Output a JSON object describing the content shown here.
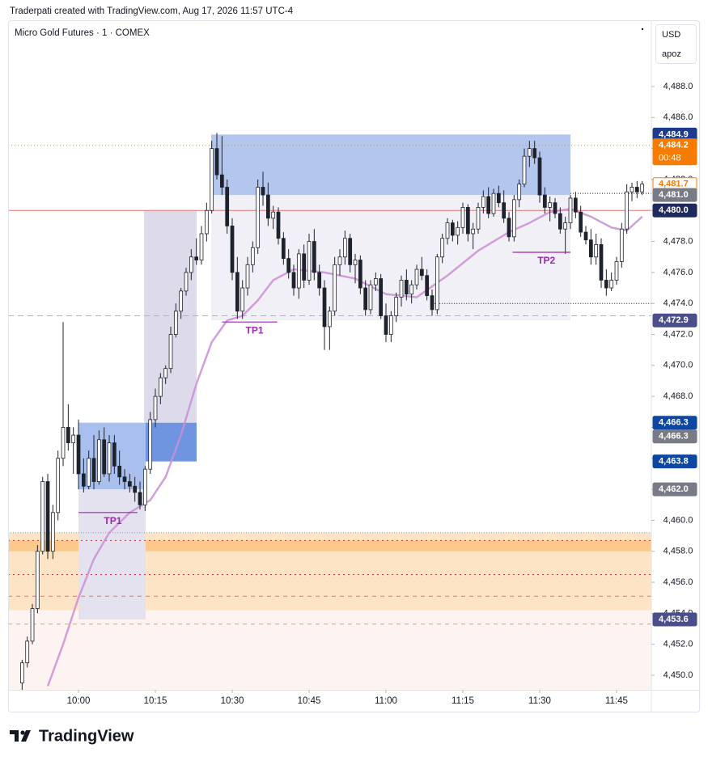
{
  "header": {
    "credit": "Traderpati created with TradingView.com, Aug 17, 2026 11:57 UTC-4",
    "symbol": "Micro Gold Futures · 1 · COMEX",
    "currency": "USD",
    "scale_mode": "apoz",
    "brand": "TradingView"
  },
  "chart_data": {
    "type": "candlestick",
    "xlim": [
      -13.74,
      111.79
    ],
    "ylim": [
      4449.06,
      4492.28
    ],
    "xticks": [
      {
        "value": 0,
        "label": "10:00"
      },
      {
        "value": 15,
        "label": "10:15"
      },
      {
        "value": 30,
        "label": "10:30"
      },
      {
        "value": 45,
        "label": "10:45"
      },
      {
        "value": 60,
        "label": "11:00"
      },
      {
        "value": 75,
        "label": "11:15"
      },
      {
        "value": 90,
        "label": "11:30"
      },
      {
        "value": 105,
        "label": "11:45"
      }
    ],
    "yticks": [
      {
        "value": 4450,
        "label": "4,450.0"
      },
      {
        "value": 4452,
        "label": "4,452.0"
      },
      {
        "value": 4454,
        "label": "4,454.0"
      },
      {
        "value": 4456,
        "label": "4,456.0"
      },
      {
        "value": 4458,
        "label": "4,458.0"
      },
      {
        "value": 4460,
        "label": "4,460.0"
      },
      {
        "value": 4462,
        "label": "4,462.0"
      },
      {
        "value": 4464,
        "label": "4,464.0"
      },
      {
        "value": 4466,
        "label": "4,466.0"
      },
      {
        "value": 4468,
        "label": "4,468.0"
      },
      {
        "value": 4470,
        "label": "4,470.0"
      },
      {
        "value": 4472,
        "label": "4,472.0"
      },
      {
        "value": 4474,
        "label": "4,474.0"
      },
      {
        "value": 4476,
        "label": "4,476.0"
      },
      {
        "value": 4478,
        "label": "4,478.0"
      },
      {
        "value": 4480,
        "label": "4,480.0"
      },
      {
        "value": 4482,
        "label": "4,482.0"
      },
      {
        "value": 4484,
        "label": "4,484.0"
      },
      {
        "value": 4486,
        "label": "4,486.0"
      },
      {
        "value": 4488,
        "label": "4,488.0"
      }
    ],
    "up_color": "#ffffff",
    "down_color": "#1e222d",
    "outline_color": "#1e222d",
    "x": [
      -11,
      -10,
      -9,
      -8,
      -7,
      -6,
      -5,
      -4,
      -3,
      -2,
      -1,
      0,
      1,
      2,
      3,
      4,
      5,
      6,
      7,
      8,
      9,
      10,
      11,
      12,
      13,
      14,
      15,
      16,
      17,
      18,
      19,
      20,
      21,
      22,
      23,
      24,
      25,
      26,
      27,
      28,
      29,
      30,
      31,
      32,
      33,
      34,
      35,
      36,
      37,
      38,
      39,
      40,
      41,
      42,
      43,
      44,
      45,
      46,
      47,
      48,
      49,
      50,
      51,
      52,
      53,
      54,
      55,
      56,
      57,
      58,
      59,
      60,
      61,
      62,
      63,
      64,
      65,
      66,
      67,
      68,
      69,
      70,
      71,
      72,
      73,
      74,
      75,
      76,
      77,
      78,
      79,
      80,
      81,
      82,
      83,
      84,
      85,
      86,
      87,
      88,
      89,
      90,
      91,
      92,
      93,
      94,
      95,
      96,
      97,
      98,
      99,
      100,
      101,
      102,
      103,
      104,
      105,
      106,
      107,
      108,
      109,
      110
    ],
    "candles": [
      [
        4449.5,
        4451,
        4449,
        4450.8
      ],
      [
        4450.8,
        4452.5,
        4450.5,
        4452.2
      ],
      [
        4452.2,
        4454.6,
        4452,
        4454.3
      ],
      [
        4454.3,
        4458.4,
        4454,
        4458
      ],
      [
        4458,
        4462.8,
        4457.8,
        4462.5
      ],
      [
        4462.5,
        4463,
        4457.5,
        4458
      ],
      [
        4458,
        4461,
        4457.5,
        4460.5
      ],
      [
        4460.5,
        4464.5,
        4460,
        4464
      ],
      [
        4464,
        4472.8,
        4463.5,
        4466
      ],
      [
        4466,
        4467.5,
        4464.5,
        4465
      ],
      [
        4465,
        4466,
        4463,
        4465.5
      ],
      [
        4465.5,
        4466.5,
        4462,
        4463
      ],
      [
        4463,
        4464,
        4461.8,
        4462.2
      ],
      [
        4462.2,
        4464.5,
        4462,
        4464
      ],
      [
        4464,
        4465.5,
        4462,
        4462.5
      ],
      [
        4462.5,
        4465.8,
        4462.3,
        4465.2
      ],
      [
        4465.2,
        4466,
        4462.8,
        4463
      ],
      [
        4463,
        4465.5,
        4462.5,
        4465
      ],
      [
        4465,
        4465.5,
        4463,
        4463.5
      ],
      [
        4463.5,
        4464.5,
        4462.3,
        4462.8
      ],
      [
        4462.8,
        4463.3,
        4462,
        4462.5
      ],
      [
        4462.5,
        4463,
        4461.8,
        4462.2
      ],
      [
        4462.2,
        4462.8,
        4461.2,
        4461.8
      ],
      [
        4461.8,
        4462.5,
        4460.7,
        4461
      ],
      [
        4461,
        4463.5,
        4460.6,
        4463.3
      ],
      [
        4463.3,
        4467,
        4463,
        4466.5
      ],
      [
        4466.5,
        4468.5,
        4466,
        4468
      ],
      [
        4468,
        4469.5,
        4467.5,
        4469.2
      ],
      [
        4469.2,
        4470,
        4468.8,
        4469.8
      ],
      [
        4469.8,
        4472.5,
        4469.5,
        4472
      ],
      [
        4472,
        4474,
        4471.8,
        4473.5
      ],
      [
        4473.5,
        4475,
        4473,
        4474.8
      ],
      [
        4474.8,
        4476.3,
        4474.5,
        4476
      ],
      [
        4476,
        4477.5,
        4475.5,
        4477
      ],
      [
        4477,
        4478.2,
        4476.5,
        4476.8
      ],
      [
        4476.8,
        4479,
        4476.5,
        4478.5
      ],
      [
        4478.5,
        4480.5,
        4478,
        4480
      ],
      [
        4480,
        4484.5,
        4479.8,
        4484
      ],
      [
        4484,
        4485,
        4482,
        4482.3
      ],
      [
        4482.3,
        4484.8,
        4481,
        4481.5
      ],
      [
        4481.5,
        4482,
        4478.5,
        4479
      ],
      [
        4479,
        4479.5,
        4475.5,
        4476
      ],
      [
        4476,
        4477,
        4473,
        4473.5
      ],
      [
        4473.5,
        4475.5,
        4473,
        4475
      ],
      [
        4475,
        4477,
        4474.5,
        4476.5
      ],
      [
        4476.5,
        4478,
        4476,
        4477.6
      ],
      [
        4477.6,
        4482,
        4477.2,
        4481.5
      ],
      [
        4481.5,
        4482.5,
        4480.3,
        4481
      ],
      [
        4481,
        4481.8,
        4479,
        4479.5
      ],
      [
        4479.5,
        4480.3,
        4478.8,
        4479.9
      ],
      [
        4479.9,
        4480.2,
        4477.8,
        4478.2
      ],
      [
        4478.2,
        4478.6,
        4476.5,
        4476.9
      ],
      [
        4476.9,
        4477.5,
        4475.6,
        4476
      ],
      [
        4476,
        4476.5,
        4474.5,
        4475
      ],
      [
        4475,
        4477.5,
        4474.3,
        4477.2
      ],
      [
        4477.2,
        4477.8,
        4475,
        4475.5
      ],
      [
        4475.5,
        4478.5,
        4475.2,
        4478
      ],
      [
        4478,
        4478.8,
        4475.5,
        4476
      ],
      [
        4476,
        4476.5,
        4474.5,
        4475
      ],
      [
        4475,
        4475.5,
        4471,
        4472.5
      ],
      [
        4472.5,
        4473.8,
        4471,
        4473.5
      ],
      [
        4473.5,
        4477,
        4473.2,
        4476.5
      ],
      [
        4476.5,
        4477.5,
        4475.8,
        4477
      ],
      [
        4477,
        4478.7,
        4476.5,
        4478.2
      ],
      [
        4478.2,
        4478.5,
        4476,
        4476.5
      ],
      [
        4476.5,
        4477.2,
        4475.3,
        4476.8
      ],
      [
        4476.8,
        4477.1,
        4474.6,
        4475
      ],
      [
        4475,
        4475.5,
        4473.2,
        4473.6
      ],
      [
        4473.6,
        4475.5,
        4473.3,
        4475.2
      ],
      [
        4475.2,
        4476,
        4474.8,
        4475.6
      ],
      [
        4475.6,
        4475.9,
        4473,
        4473.2
      ],
      [
        4473.2,
        4474,
        4471.5,
        4472
      ],
      [
        4472,
        4473.5,
        4471.5,
        4473.2
      ],
      [
        4473.2,
        4474.7,
        4472.8,
        4474.4
      ],
      [
        4474.4,
        4475.8,
        4473.8,
        4475.5
      ],
      [
        4475.5,
        4476.2,
        4474.2,
        4474.6
      ],
      [
        4474.6,
        4475.5,
        4474,
        4475.2
      ],
      [
        4475.2,
        4476.5,
        4474.9,
        4476.2
      ],
      [
        4476.2,
        4477,
        4475.5,
        4475.8
      ],
      [
        4475.8,
        4476.2,
        4474.2,
        4474.5
      ],
      [
        4474.5,
        4474.9,
        4473.2,
        4473.6
      ],
      [
        4473.6,
        4477.2,
        4473.3,
        4477
      ],
      [
        4477,
        4478.5,
        4476.6,
        4478.2
      ],
      [
        4478.2,
        4479.5,
        4477.8,
        4479.2
      ],
      [
        4479.2,
        4479.4,
        4478,
        4478.4
      ],
      [
        4478.4,
        4479.3,
        4477.8,
        4478.9
      ],
      [
        4478.9,
        4480.5,
        4478.5,
        4480.2
      ],
      [
        4480.2,
        4480.4,
        4478,
        4478.5
      ],
      [
        4478.5,
        4479.2,
        4477.5,
        4478.8
      ],
      [
        4478.8,
        4480.5,
        4478.5,
        4480.2
      ],
      [
        4480.2,
        4481.3,
        4479.8,
        4480.9
      ],
      [
        4480.9,
        4481.5,
        4479.5,
        4479.8
      ],
      [
        4479.8,
        4481.4,
        4479.6,
        4481.1
      ],
      [
        4481.1,
        4481.6,
        4480.2,
        4480.5
      ],
      [
        4480.5,
        4481.3,
        4479.2,
        4479.5
      ],
      [
        4479.5,
        4479.9,
        4478,
        4478.3
      ],
      [
        4478.3,
        4481,
        4478,
        4480.7
      ],
      [
        4480.7,
        4482,
        4480.2,
        4481.7
      ],
      [
        4481.7,
        4484,
        4481.5,
        4483.5
      ],
      [
        4483.5,
        4484.5,
        4482.8,
        4484
      ],
      [
        4484,
        4484.5,
        4483,
        4483.4
      ],
      [
        4483.4,
        4483.8,
        4480.5,
        4481
      ],
      [
        4481,
        4481.5,
        4479.8,
        4480.2
      ],
      [
        4480.2,
        4480.9,
        4479.3,
        4480.5
      ],
      [
        4480.5,
        4480.8,
        4479.5,
        4479.8
      ],
      [
        4479.8,
        4480.2,
        4478.5,
        4478.8
      ],
      [
        4478.8,
        4479.6,
        4477.2,
        4479.2
      ],
      [
        4479.2,
        4481,
        4478.8,
        4480.8
      ],
      [
        4480.8,
        4481.2,
        4479.5,
        4479.9
      ],
      [
        4479.9,
        4480.3,
        4478.3,
        4478.6
      ],
      [
        4478.6,
        4479,
        4477.8,
        4478.1
      ],
      [
        4478.1,
        4478.8,
        4476.5,
        4477
      ],
      [
        4477,
        4478.5,
        4476.5,
        4477.8
      ],
      [
        4477.8,
        4478.2,
        4475,
        4475.5
      ],
      [
        4475.5,
        4476.2,
        4474.5,
        4475
      ],
      [
        4475,
        4476,
        4474.8,
        4475.5
      ],
      [
        4475.5,
        4477,
        4475.2,
        4476.7
      ],
      [
        4476.7,
        4479.2,
        4476.3,
        4478.8
      ],
      [
        4478.8,
        4481.7,
        4478.5,
        4481.2
      ],
      [
        4481.2,
        4481.8,
        4480.6,
        4481.5
      ],
      [
        4481.5,
        4481.9,
        4480.8,
        4481.2
      ],
      [
        4481.2,
        4481.9,
        4481,
        4481.7
      ]
    ],
    "moving_average": {
      "color": "#c98fd6",
      "x": [
        -6,
        -3,
        0,
        3,
        6,
        10,
        14,
        17,
        20,
        23,
        26,
        29,
        32,
        35,
        38,
        42,
        48,
        54,
        60,
        66,
        72,
        78,
        84,
        88,
        92,
        96,
        100,
        104,
        107,
        110
      ],
      "values": [
        4449.3,
        4452,
        4455,
        4457.5,
        4459.2,
        4460.5,
        4461.3,
        4462.8,
        4465.5,
        4468.8,
        4471.5,
        4472.9,
        4473.2,
        4474.2,
        4475.5,
        4476.2,
        4476,
        4475.6,
        4474.6,
        4474.4,
        4475.8,
        4477.4,
        4478.6,
        4479.2,
        4479.9,
        4480.1,
        4479.6,
        4478.9,
        4478.7,
        4479.6
      ]
    },
    "zones": [
      {
        "full_width": true,
        "y": [
          4459.2,
          4454.2
        ],
        "color": "#fde4c4"
      },
      {
        "full_width": true,
        "y": [
          4454.2,
          4449.06
        ],
        "color": "#fdf3f0"
      },
      {
        "full_width": true,
        "y": [
          4458.7,
          4458.0
        ],
        "color": "#fcc98a"
      },
      {
        "x": [
          0,
          13.1
        ],
        "y": [
          4462.0,
          4453.6
        ],
        "color": "#e4e2ee"
      },
      {
        "x": [
          12.8,
          23.05
        ],
        "y": [
          4480.0,
          4466.3
        ],
        "color": "#dddbea"
      },
      {
        "x": [
          0,
          13.1
        ],
        "y": [
          4466.3,
          4462.0
        ],
        "color": "#a9c0ee"
      },
      {
        "x": [
          13.1,
          23.05
        ],
        "y": [
          4466.3,
          4463.8
        ],
        "color": "#6f95e0"
      },
      {
        "x": [
          25.9,
          96
        ],
        "y": [
          4481.0,
          4472.9
        ],
        "color": "#f1f0f7"
      },
      {
        "x": [
          25.9,
          96
        ],
        "y": [
          4484.9,
          4481.0
        ],
        "color": "#b3c6ee"
      }
    ],
    "levels": [
      {
        "value": 4484.2,
        "color": "#e08a3c",
        "dash": "1,3"
      },
      {
        "value": 4480.0,
        "color": "#e57373",
        "dash": "none"
      },
      {
        "value": 4473.2,
        "color": "#b0b3bd",
        "dash": "7,5"
      },
      {
        "value": 4474.0,
        "x": [
          69.5,
          111.79
        ],
        "color": "#131722",
        "dash": "1,2"
      },
      {
        "value": 4481.1,
        "x": [
          96,
          111.79
        ],
        "color": "#131722",
        "dash": "1,2"
      },
      {
        "value": 4459.2,
        "color": "#9598a1",
        "dash": "1,2"
      },
      {
        "value": 4458.7,
        "color": "#d32f2f",
        "dash": "2,4"
      },
      {
        "value": 4456.5,
        "color": "#d32f2f",
        "dash": "2,4"
      },
      {
        "value": 4455.1,
        "color": "#e57373",
        "dash": "5,5"
      },
      {
        "value": 4453.3,
        "color": "#f0a050",
        "dash": "5,5"
      }
    ],
    "targets": [
      {
        "label": "TP1",
        "value": 4460.5,
        "x": [
          0,
          11.5
        ],
        "color": "#9c27b0"
      },
      {
        "label": "TP1",
        "value": 4472.8,
        "x": [
          28,
          38.8
        ],
        "color": "#9c27b0"
      },
      {
        "label": "TP2",
        "value": 4477.3,
        "x": [
          84.7,
          96
        ],
        "color": "#9c27b0"
      }
    ],
    "price_labels": [
      {
        "value": 4484.9,
        "label": "4,484.9",
        "bg": "#1e3a8a",
        "fg": "#ffffff"
      },
      {
        "value": 4484.2,
        "label": "4,484.2",
        "timer": "00:48",
        "bg": "#f57c00",
        "fg": "#ffffff"
      },
      {
        "value": 4481.7,
        "label": "4,481.7",
        "bg": "#ffffff",
        "fg": "#f57c00"
      },
      {
        "value": 4481.0,
        "label": "4,481.0",
        "bg": "#787b86",
        "fg": "#ffffff"
      },
      {
        "value": 4480.0,
        "label": "4,480.0",
        "bg": "#1f2a5c",
        "fg": "#ffffff"
      },
      {
        "value": 4472.9,
        "label": "4,472.9",
        "bg": "#4a4f8c",
        "fg": "#ffffff"
      },
      {
        "value": 4466.3,
        "label": "4,466.3",
        "bg": "#0d47a1",
        "fg": "#ffffff"
      },
      {
        "value": 4466.3,
        "label": "4,466.3",
        "bg": "#787b86",
        "fg": "#ffffff",
        "offset": 1
      },
      {
        "value": 4463.8,
        "label": "4,463.8",
        "bg": "#0d47a1",
        "fg": "#ffffff"
      },
      {
        "value": 4462.0,
        "label": "4,462.0",
        "bg": "#787b86",
        "fg": "#ffffff"
      },
      {
        "value": 4453.6,
        "label": "4,453.6",
        "bg": "#4a4f8c",
        "fg": "#ffffff"
      }
    ]
  }
}
